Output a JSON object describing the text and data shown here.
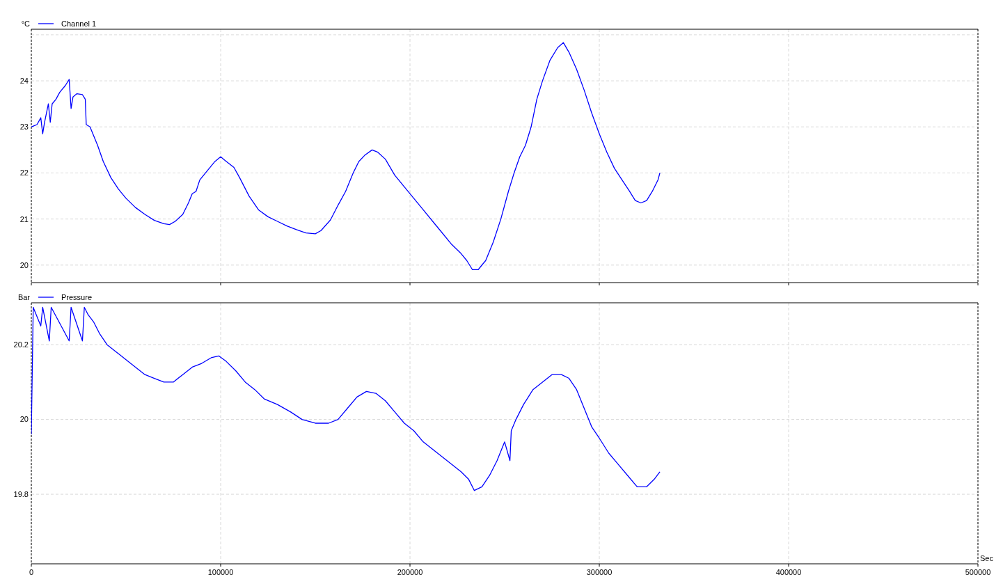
{
  "chart_data": [
    {
      "type": "line",
      "ylabel": "°C",
      "xlim": [
        0,
        500000
      ],
      "xticks": [
        0,
        100000,
        200000,
        300000,
        400000,
        500000
      ],
      "ylim": [
        19.62,
        25.12
      ],
      "yticks": [
        20,
        21,
        22,
        23,
        24,
        {
          "value": 25,
          "label": null
        }
      ],
      "tick_labels": "y",
      "grid": true,
      "legend": "top left",
      "x": [
        0,
        3000,
        5000,
        6000,
        7000,
        8000,
        9000,
        10000,
        11000,
        13000,
        15000,
        18000,
        20000,
        21000,
        22000,
        24000,
        27000,
        28500,
        29000,
        31000,
        33000,
        35000,
        38000,
        42000,
        46000,
        50000,
        55000,
        60000,
        65000,
        70000,
        73000,
        76000,
        80000,
        83000,
        85000,
        87000,
        89000,
        93000,
        97000,
        100000,
        103000,
        107000,
        110000,
        115000,
        120000,
        125000,
        130000,
        135000,
        140000,
        145000,
        150000,
        153000,
        158000,
        162000,
        166000,
        170000,
        173000,
        176000,
        180000,
        183000,
        187000,
        192000,
        197000,
        202000,
        207000,
        212000,
        217000,
        222000,
        227000,
        230000,
        233000,
        236000,
        240000,
        244000,
        248000,
        252000,
        255000,
        258000,
        261000,
        264000,
        267000,
        270000,
        274000,
        278000,
        281000,
        284000,
        288000,
        292000,
        296000,
        300000,
        304000,
        308000,
        312000,
        316000,
        319000,
        322000,
        325000,
        328000,
        331000,
        332000
      ],
      "series": [
        {
          "name": "Channel 1",
          "color": "#0000ff",
          "values": [
            23.0,
            23.05,
            23.2,
            22.85,
            23.1,
            23.3,
            23.5,
            23.1,
            23.5,
            23.6,
            23.75,
            23.9,
            24.03,
            23.4,
            23.65,
            23.72,
            23.7,
            23.6,
            23.05,
            23.0,
            22.8,
            22.6,
            22.25,
            21.9,
            21.65,
            21.45,
            21.25,
            21.1,
            20.97,
            20.9,
            20.88,
            20.95,
            21.1,
            21.35,
            21.55,
            21.6,
            21.85,
            22.05,
            22.25,
            22.35,
            22.25,
            22.12,
            21.9,
            21.5,
            21.2,
            21.05,
            20.95,
            20.85,
            20.77,
            20.7,
            20.68,
            20.75,
            20.98,
            21.3,
            21.6,
            22.0,
            22.25,
            22.38,
            22.5,
            22.45,
            22.3,
            21.95,
            21.7,
            21.45,
            21.2,
            20.95,
            20.7,
            20.45,
            20.25,
            20.1,
            19.9,
            19.9,
            20.1,
            20.5,
            21.0,
            21.6,
            22.0,
            22.35,
            22.6,
            23.0,
            23.6,
            24.0,
            24.45,
            24.72,
            24.83,
            24.62,
            24.25,
            23.8,
            23.3,
            22.85,
            22.45,
            22.1,
            21.85,
            21.6,
            21.4,
            21.35,
            21.4,
            21.6,
            21.85,
            22.0
          ]
        }
      ]
    },
    {
      "type": "line",
      "ylabel": "Bar",
      "xlabel": "Sec",
      "xlim": [
        0,
        500000
      ],
      "xticks": [
        0,
        100000,
        200000,
        300000,
        400000,
        500000
      ],
      "ylim": [
        19.614,
        20.312
      ],
      "yticks": [
        19.8,
        20,
        20.2
      ],
      "grid": true,
      "legend": "top left",
      "x": [
        0,
        1000,
        5000,
        6000,
        9500,
        10500,
        20000,
        21000,
        27000,
        28000,
        30000,
        33000,
        36000,
        40000,
        45000,
        50000,
        55000,
        60000,
        65000,
        70000,
        75000,
        80000,
        85000,
        90000,
        95000,
        99000,
        103000,
        108000,
        113000,
        118000,
        123000,
        130000,
        137000,
        143000,
        150000,
        157000,
        162000,
        167000,
        172000,
        177000,
        182000,
        187000,
        192000,
        197000,
        202000,
        207000,
        212000,
        217000,
        222000,
        227000,
        231000,
        234000,
        238000,
        242000,
        246000,
        250000,
        252800,
        253500,
        256000,
        260000,
        265000,
        270000,
        275000,
        280000,
        284000,
        288000,
        292000,
        296000,
        300000,
        305000,
        310000,
        315000,
        320000,
        325000,
        329000,
        332000
      ],
      "series": [
        {
          "name": "Pressure",
          "color": "#0000ff",
          "values": [
            19.96,
            20.3,
            20.25,
            20.3,
            20.21,
            20.3,
            20.21,
            20.3,
            20.21,
            20.3,
            20.28,
            20.26,
            20.23,
            20.2,
            20.18,
            20.16,
            20.14,
            20.12,
            20.11,
            20.1,
            20.1,
            20.12,
            20.14,
            20.15,
            20.165,
            20.17,
            20.155,
            20.13,
            20.1,
            20.08,
            20.055,
            20.04,
            20.02,
            20.0,
            19.99,
            19.99,
            20.0,
            20.03,
            20.06,
            20.075,
            20.07,
            20.05,
            20.02,
            19.99,
            19.97,
            19.94,
            19.92,
            19.9,
            19.88,
            19.86,
            19.84,
            19.81,
            19.82,
            19.85,
            19.89,
            19.94,
            19.89,
            19.97,
            20.0,
            20.04,
            20.08,
            20.1,
            20.12,
            20.12,
            20.11,
            20.08,
            20.03,
            19.98,
            19.95,
            19.91,
            19.88,
            19.85,
            19.82,
            19.82,
            19.84,
            19.86
          ]
        }
      ]
    }
  ]
}
